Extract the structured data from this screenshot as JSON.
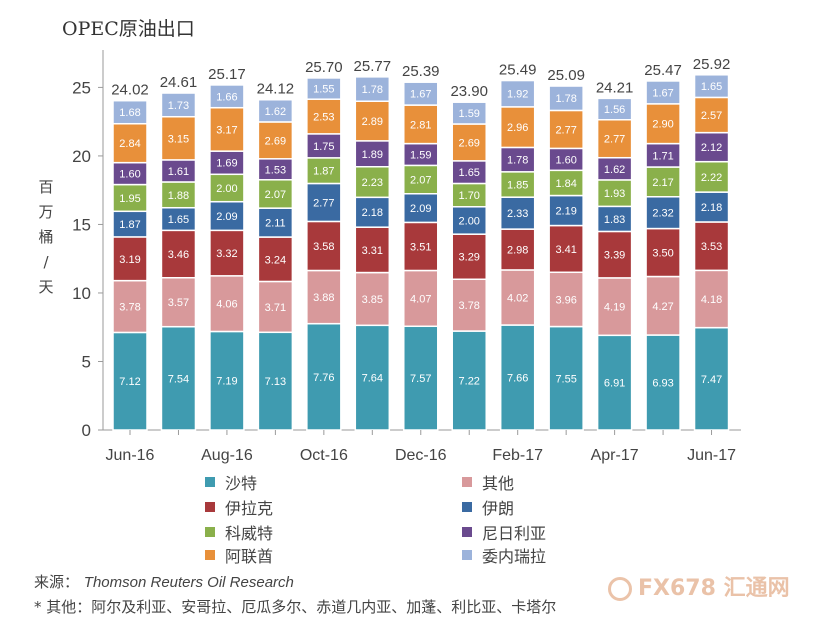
{
  "title": "OPEC原油出口",
  "chart_data": {
    "type": "bar",
    "stacked": true,
    "title": "OPEC原油出口",
    "ylabel": "百万桶/天",
    "ylim": [
      0,
      27
    ],
    "yticks": [
      0,
      5,
      10,
      15,
      20,
      25
    ],
    "categories": [
      "Jun-16",
      "Jul-16",
      "Aug-16",
      "Sep-16",
      "Oct-16",
      "Nov-16",
      "Dec-16",
      "Jan-17",
      "Feb-17",
      "Mar-17",
      "Apr-17",
      "May-17",
      "Jun-17"
    ],
    "x_tick_labels": [
      "Jun-16",
      "",
      "Aug-16",
      "",
      "Oct-16",
      "",
      "Dec-16",
      "",
      "Feb-17",
      "",
      "Apr-17",
      "",
      "Jun-17"
    ],
    "totals": [
      "24.02",
      "24.61",
      "25.17",
      "24.12",
      "25.70",
      "25.77",
      "25.39",
      "23.90",
      "25.49",
      "25.09",
      "24.21",
      "25.47",
      "25.92"
    ],
    "series": [
      {
        "name": "沙特",
        "color": "#3f9bb0",
        "values": [
          7.12,
          7.54,
          7.19,
          7.13,
          7.76,
          7.64,
          7.57,
          7.22,
          7.66,
          7.55,
          6.91,
          6.93,
          7.47
        ]
      },
      {
        "name": "其他",
        "color": "#d8999b",
        "values": [
          3.78,
          3.57,
          4.06,
          3.71,
          3.88,
          3.85,
          4.07,
          3.78,
          4.02,
          3.96,
          4.19,
          4.27,
          4.18
        ]
      },
      {
        "name": "伊拉克",
        "color": "#a8393b",
        "values": [
          3.19,
          3.46,
          3.32,
          3.24,
          3.58,
          3.31,
          3.51,
          3.29,
          2.98,
          3.41,
          3.39,
          3.5,
          3.53
        ]
      },
      {
        "name": "伊朗",
        "color": "#3a6aa2",
        "values": [
          1.87,
          1.65,
          2.09,
          2.11,
          2.77,
          2.18,
          2.09,
          2.0,
          2.33,
          2.19,
          1.83,
          2.32,
          2.18
        ]
      },
      {
        "name": "科威特",
        "color": "#8ab04b",
        "values": [
          1.95,
          1.88,
          2.0,
          2.07,
          1.87,
          2.23,
          2.07,
          1.7,
          1.85,
          1.84,
          1.93,
          2.17,
          2.22
        ]
      },
      {
        "name": "尼日利亚",
        "color": "#6a4a8e",
        "values": [
          1.6,
          1.61,
          1.69,
          1.53,
          1.75,
          1.89,
          1.59,
          1.65,
          1.78,
          1.6,
          1.62,
          1.71,
          2.12
        ]
      },
      {
        "name": "阿联酋",
        "color": "#e8903a",
        "values": [
          2.84,
          3.15,
          3.17,
          2.69,
          2.53,
          2.89,
          2.81,
          2.69,
          2.96,
          2.77,
          2.77,
          2.9,
          2.57
        ]
      },
      {
        "name": "委内瑞拉",
        "color": "#9cb3db",
        "values": [
          1.68,
          1.73,
          1.66,
          1.62,
          1.55,
          1.78,
          1.67,
          1.59,
          1.92,
          1.78,
          1.56,
          1.67,
          1.65
        ]
      }
    ],
    "legend_placement": "bottom",
    "grid": false
  },
  "ylabel_chars": [
    "百",
    "万",
    "桶",
    "/",
    "天"
  ],
  "source": {
    "label": "来源：",
    "value": "Thomson Reuters Oil Research"
  },
  "footnote": "* 其他：阿尔及利亚、安哥拉、厄瓜多尔、赤道几内亚、加蓬、利比亚、卡塔尔",
  "watermark": "FX678 汇通网"
}
